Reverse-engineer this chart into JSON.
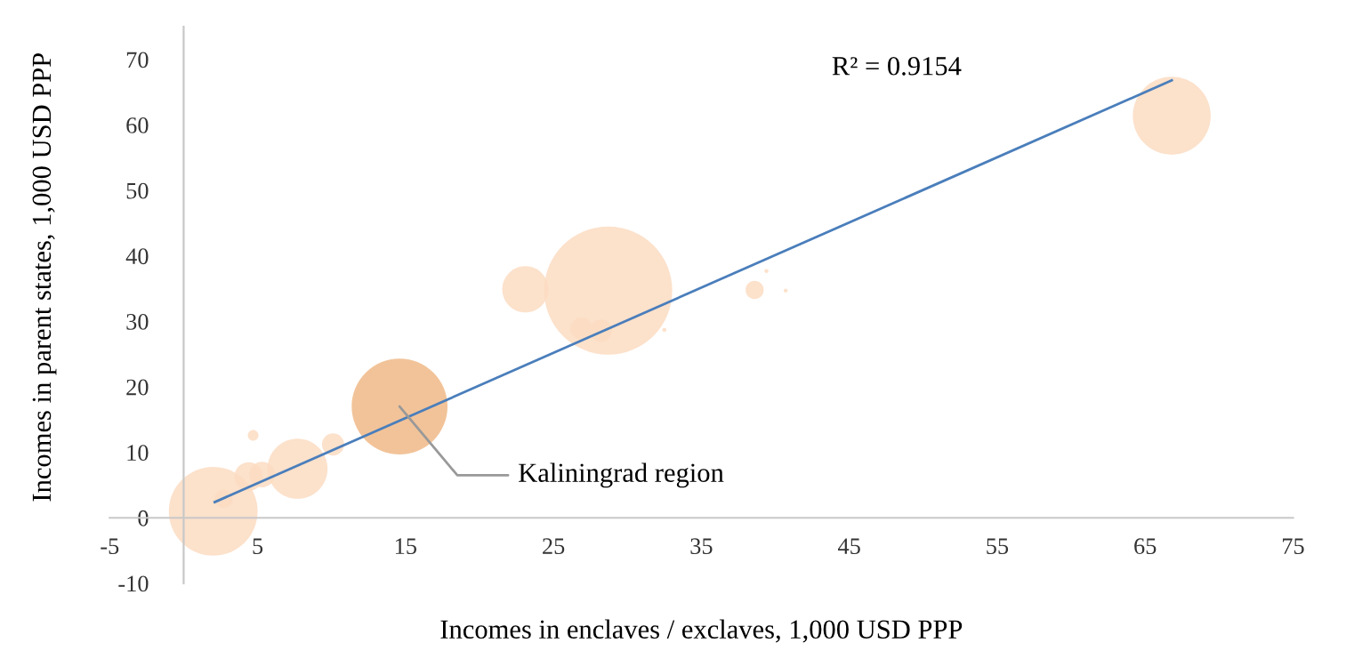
{
  "chart_data": {
    "type": "bubble",
    "xlabel": "Incomes in enclaves / exclaves, 1,000 USD PPP",
    "ylabel": "Incomes in parent states, 1,000 USD PPP",
    "xlim": [
      -5,
      75
    ],
    "xticks": [
      -5,
      5,
      15,
      25,
      35,
      45,
      55,
      65,
      75
    ],
    "ylim": [
      -10,
      75
    ],
    "yticks": [
      -10,
      0,
      10,
      20,
      30,
      40,
      50,
      60,
      70
    ],
    "grid": false,
    "legend": false,
    "series": [
      {
        "x": [
          2.0,
          2.7,
          4.4,
          5.3,
          4.7,
          7.7,
          10.1,
          14.6,
          23.1,
          28.7,
          26.9,
          28.2,
          38.6,
          39.4,
          40.7,
          32.5,
          66.8
        ],
        "values": [
          1.0,
          2.9,
          6.3,
          6.6,
          12.6,
          7.5,
          11.2,
          17.0,
          34.9,
          34.7,
          28.9,
          28.6,
          34.8,
          37.7,
          34.7,
          28.7,
          61.4
        ],
        "sizes": [
          0.48,
          0.02,
          0.05,
          0.04,
          0.007,
          0.22,
          0.03,
          0.56,
          0.13,
          1,
          0.03,
          0.03,
          0.02,
          0.001,
          0.001,
          0.001,
          0.37
        ],
        "colors": [
          "#fbdcc2",
          "#fbdcc2",
          "#fbdcc2",
          "#fbdcc2",
          "#fbdcc2",
          "#fbdcc2",
          "#fbdcc2",
          "#f0b987",
          "#fbdcc2",
          "#fbdcc2",
          "#fbdcc2",
          "#fbdcc2",
          "#fbdcc2",
          "#fbdcc2",
          "#fbdcc2",
          "#fbdcc2",
          "#fbdcc2"
        ]
      },
      {
        "type": "line",
        "x": [
          2.1,
          66.8
        ],
        "values": [
          2.4,
          66.8
        ],
        "color": "#4a7ebb"
      }
    ],
    "annotations": [
      {
        "text": "Kaliningrad region",
        "x": 14.6,
        "y": 17.0
      },
      "R² = 0.9154"
    ]
  }
}
